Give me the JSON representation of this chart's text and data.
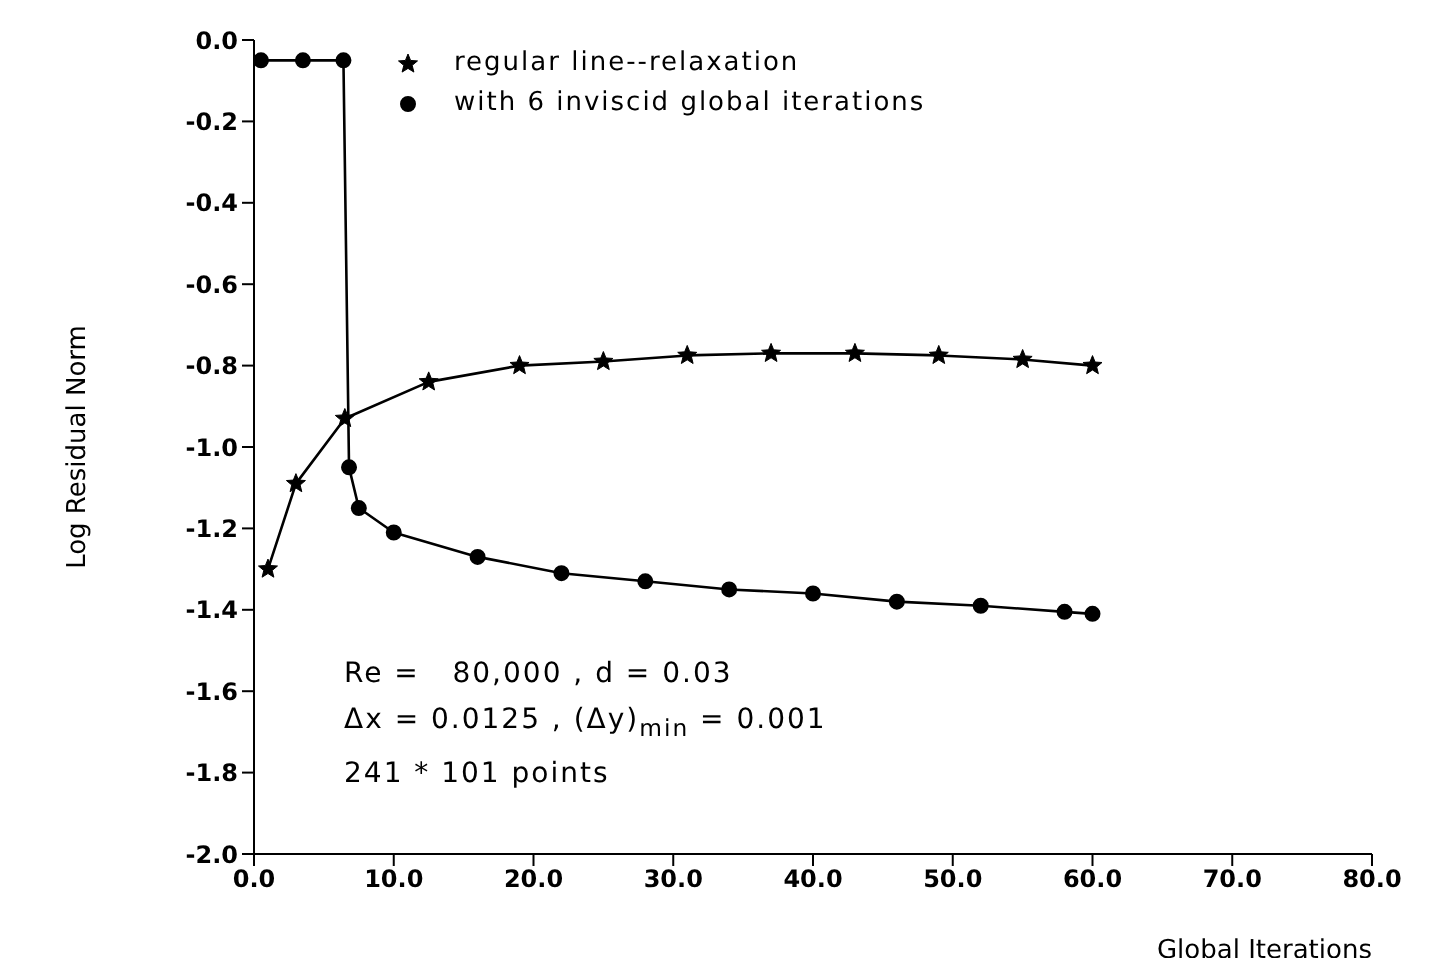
{
  "chart_data": {
    "type": "line",
    "xlabel": "Global Iterations",
    "ylabel": "Log Residual Norm",
    "xlim": [
      0,
      80
    ],
    "xticks": [
      {
        "value": 0,
        "label": "0.0"
      },
      {
        "value": 10,
        "label": "10.0"
      },
      {
        "value": 20,
        "label": "20.0"
      },
      {
        "value": 30,
        "label": "30.0"
      },
      {
        "value": 40,
        "label": "40.0"
      },
      {
        "value": 50,
        "label": "50.0"
      },
      {
        "value": 60,
        "label": "60.0"
      },
      {
        "value": 70,
        "label": "70.0"
      },
      {
        "value": 80,
        "label": "80.0"
      }
    ],
    "ylim": [
      -2,
      0
    ],
    "yticks": [
      {
        "value": 0,
        "label": "0.0"
      },
      {
        "value": -0.2,
        "label": "-0.2"
      },
      {
        "value": -0.4,
        "label": "-0.4"
      },
      {
        "value": -0.6,
        "label": "-0.6"
      },
      {
        "value": -0.8,
        "label": "-0.8"
      },
      {
        "value": -1,
        "label": "-1.0"
      },
      {
        "value": -1.2,
        "label": "-1.2"
      },
      {
        "value": -1.4,
        "label": "-1.4"
      },
      {
        "value": -1.6,
        "label": "-1.6"
      },
      {
        "value": -1.8,
        "label": "-1.8"
      },
      {
        "value": -2,
        "label": "-2.0"
      }
    ],
    "grid": false,
    "legend": "top left",
    "line_style": "solid",
    "series": [
      {
        "name": "regular line--relaxation",
        "color": "#000000",
        "marker": "star",
        "x": [
          1,
          3,
          6.5,
          12.5,
          19,
          25,
          31,
          37,
          43,
          49,
          55,
          60
        ],
        "values": [
          -1.3,
          -1.09,
          -0.93,
          -0.84,
          -0.8,
          -0.79,
          -0.775,
          -0.77,
          -0.77,
          -0.775,
          -0.785,
          -0.8
        ]
      },
      {
        "name": "with 6 inviscid global iterations",
        "color": "#000000",
        "marker": "circle",
        "x": [
          0.5,
          3.5,
          6.4,
          6.8,
          7.5,
          10,
          16,
          22,
          28,
          34,
          40,
          46,
          52,
          58,
          60
        ],
        "values": [
          -0.05,
          -0.05,
          -0.05,
          -1.05,
          -1.15,
          -1.21,
          -1.27,
          -1.31,
          -1.33,
          -1.35,
          -1.36,
          -1.38,
          -1.39,
          -1.405,
          -1.41
        ]
      }
    ],
    "annotations": [
      "Re =   80,000 , d = 0.03",
      "Δx = 0.0125 , (Δy)$_{min}$ = 0.001",
      "241 * 101 points"
    ]
  }
}
